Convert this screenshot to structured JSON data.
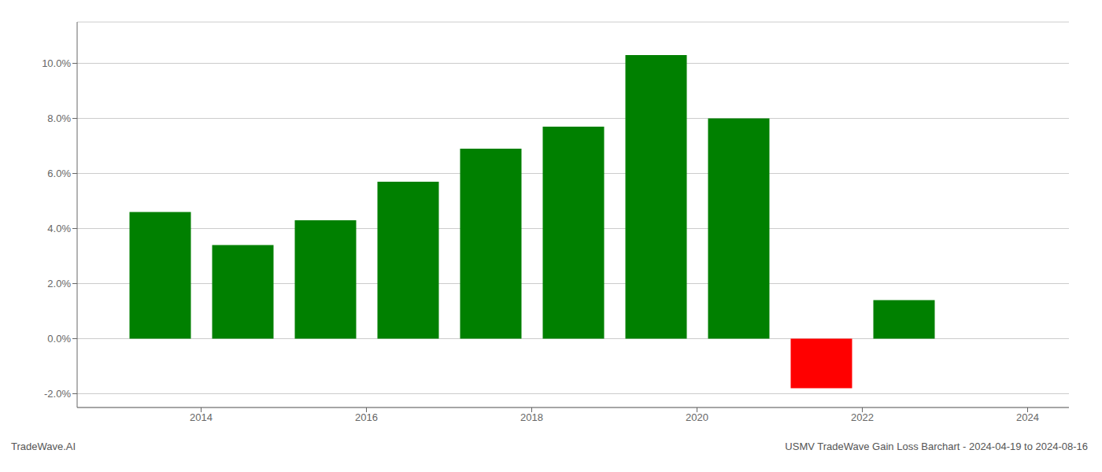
{
  "chart_data": {
    "type": "bar",
    "x": [
      2013.5,
      2014.5,
      2015.5,
      2016.5,
      2017.5,
      2018.5,
      2019.5,
      2020.5,
      2021.5,
      2022.5
    ],
    "values": [
      0.046,
      0.034,
      0.043,
      0.057,
      0.069,
      0.077,
      0.103,
      0.08,
      -0.018,
      0.014
    ],
    "colors": [
      "#008000",
      "#008000",
      "#008000",
      "#008000",
      "#008000",
      "#008000",
      "#008000",
      "#008000",
      "#ff0000",
      "#008000"
    ],
    "xlim": [
      2012.5,
      2024.5
    ],
    "xticks": [
      2014,
      2016,
      2018,
      2020,
      2022,
      2024
    ],
    "ylim": [
      -0.025,
      0.115
    ],
    "yticks": [
      {
        "value": -0.02,
        "label": "-2.0%"
      },
      {
        "value": 0.0,
        "label": "0.0%"
      },
      {
        "value": 0.02,
        "label": "2.0%"
      },
      {
        "value": 0.04,
        "label": "4.0%"
      },
      {
        "value": 0.06,
        "label": "6.0%"
      },
      {
        "value": 0.08,
        "label": "8.0%"
      },
      {
        "value": 0.1,
        "label": "10.0%"
      }
    ],
    "grid": true,
    "annotations": [
      "TradeWave.AI",
      "USMV TradeWave Gain Loss Barchart - 2024-04-19 to 2024-08-16"
    ]
  }
}
